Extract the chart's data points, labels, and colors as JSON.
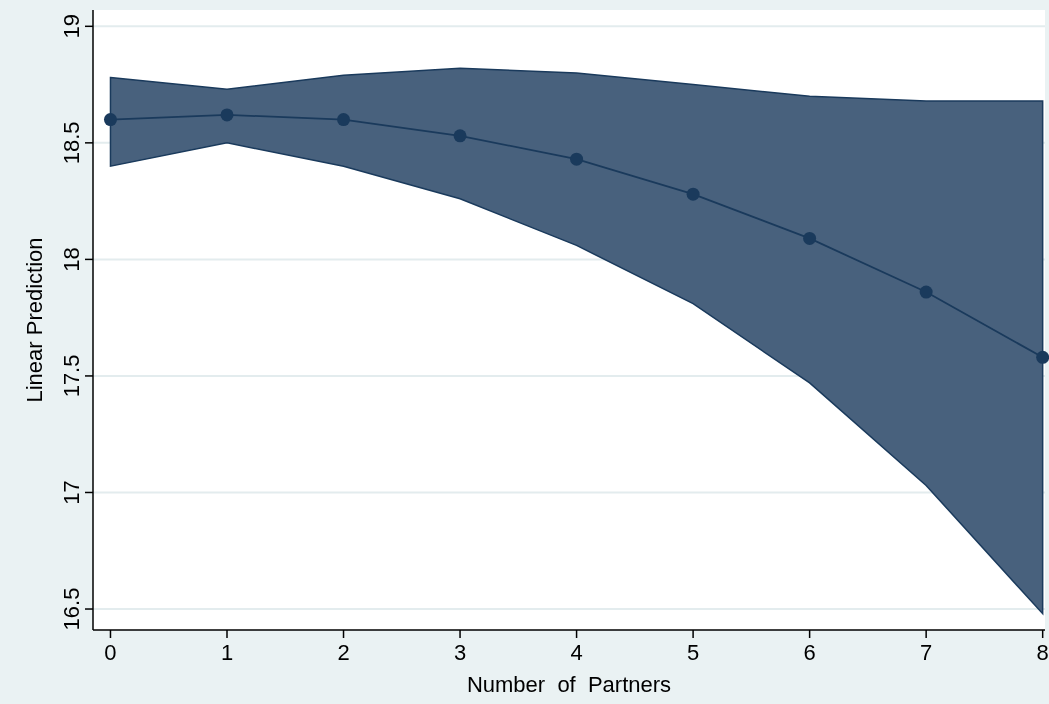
{
  "chart_data": {
    "type": "line",
    "xlabel": "Number  of  Partners",
    "ylabel": "Linear Prediction",
    "x": [
      0,
      1,
      2,
      3,
      4,
      5,
      6,
      7,
      8
    ],
    "series": [
      {
        "color": "#1a3a5c",
        "values": [
          18.6,
          18.62,
          18.6,
          18.53,
          18.43,
          18.28,
          18.09,
          17.86,
          17.58
        ],
        "lower": [
          18.4,
          18.5,
          18.4,
          18.26,
          18.06,
          17.81,
          17.47,
          17.03,
          16.48
        ],
        "upper": [
          18.78,
          18.73,
          18.79,
          18.82,
          18.8,
          18.75,
          18.7,
          18.68,
          18.68
        ]
      }
    ],
    "xlim": [
      -0.15,
      8.02
    ],
    "xticks": [
      0,
      1,
      2,
      3,
      4,
      5,
      6,
      7,
      8
    ],
    "ylim": [
      16.41,
      19.07
    ],
    "yticks": [
      16.5,
      17,
      17.5,
      18,
      18.5,
      19
    ],
    "grid": "y",
    "marker": "circle",
    "line_style": "solid"
  }
}
